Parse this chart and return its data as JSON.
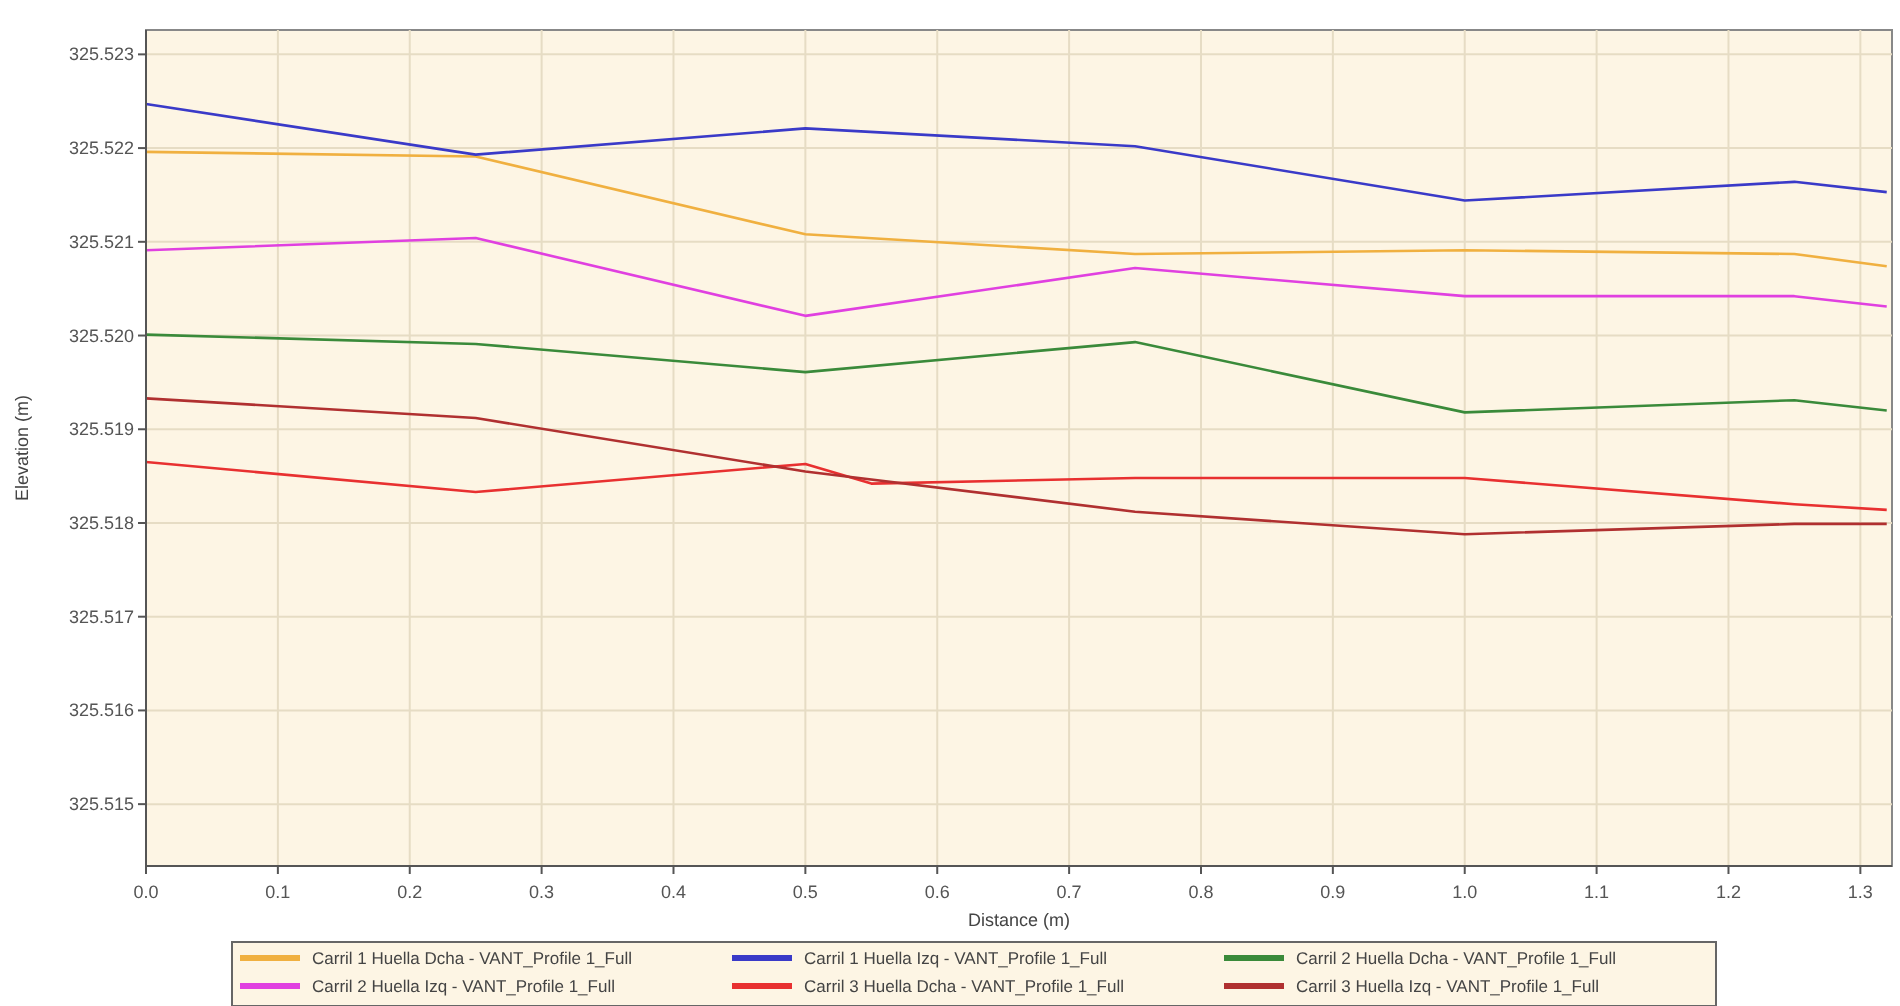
{
  "chart_data": {
    "type": "line",
    "xlabel": "Distance (m)",
    "ylabel": "Elevation (m)",
    "xlim": [
      0,
      1.324
    ],
    "ylim": [
      325.51434,
      325.52326
    ],
    "xticks": [
      {
        "value": 0,
        "label": "0.0"
      },
      {
        "value": 0.1,
        "label": "0.1"
      },
      {
        "value": 0.2,
        "label": "0.2"
      },
      {
        "value": 0.3,
        "label": "0.3"
      },
      {
        "value": 0.4,
        "label": "0.4"
      },
      {
        "value": 0.5,
        "label": "0.5"
      },
      {
        "value": 0.6,
        "label": "0.6"
      },
      {
        "value": 0.7,
        "label": "0.7"
      },
      {
        "value": 0.8,
        "label": "0.8"
      },
      {
        "value": 0.9,
        "label": "0.9"
      },
      {
        "value": 1.0,
        "label": "1.0"
      },
      {
        "value": 1.1,
        "label": "1.1"
      },
      {
        "value": 1.2,
        "label": "1.2"
      },
      {
        "value": 1.3,
        "label": "1.3"
      }
    ],
    "yticks": [
      325.515,
      325.516,
      325.517,
      325.518,
      325.519,
      {
        "value": 325.52,
        "label": "325.520"
      },
      325.521,
      325.522,
      325.523
    ],
    "grid": true,
    "legend": "bottom",
    "x": [
      0,
      0.25,
      0.5,
      0.75,
      1.0,
      1.25,
      1.32
    ],
    "series": [
      {
        "name": "Carril 1 Huella Dcha - VANT_Profile 1_Full",
        "color": "#f0b040",
        "values": [
          325.52196,
          325.52191,
          325.52108,
          325.52087,
          325.52091,
          325.52087,
          325.52074
        ]
      },
      {
        "name": "Carril 1 Huella Izq - VANT_Profile 1_Full",
        "color": "#3a3ac8",
        "values": [
          325.52247,
          325.52193,
          325.52221,
          325.52202,
          325.52144,
          325.52164,
          325.52153
        ]
      },
      {
        "name": "Carril 2 Huella Dcha - VANT_Profile 1_Full",
        "color": "#3a8a3a",
        "values": [
          325.52001,
          325.51991,
          325.51961,
          325.51993,
          325.51918,
          325.51931,
          325.5192
        ]
      },
      {
        "name": "Carril 2 Huella Izq - VANT_Profile 1_Full",
        "color": "#e040e0",
        "values": [
          325.52091,
          325.52104,
          325.52021,
          325.52072,
          325.52042,
          325.52042,
          325.52031
        ]
      },
      {
        "name": "Carril 3 Huella Dcha - VANT_Profile 1_Full",
        "color": "#e83030",
        "x": [
          0,
          0.25,
          0.5,
          0.55,
          0.75,
          1.0,
          1.25,
          1.32
        ],
        "values": [
          325.51865,
          325.51833,
          325.51863,
          325.51842,
          325.51848,
          325.51848,
          325.5182,
          325.51814
        ]
      },
      {
        "name": "Carril 3 Huella Izq - VANT_Profile 1_Full",
        "color": "#b03030",
        "values": [
          325.51933,
          325.51912,
          325.51855,
          325.51812,
          325.51788,
          325.51799,
          325.51799
        ]
      }
    ]
  }
}
